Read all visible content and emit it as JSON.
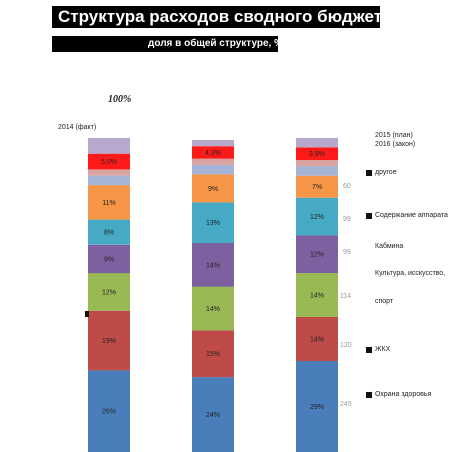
{
  "header": {
    "title": "Структура расходов сводного бюджета",
    "subtitle": "доля в общей структуре, %",
    "percent_label": "100%"
  },
  "side_labels": {
    "left": "2014 (факт)",
    "right_1": "2015 (план)",
    "right_2": "2016 (закон)"
  },
  "legend": {
    "items": [
      "другое",
      "Содержание аппарата",
      "Кабмина",
      "Культура, исскусство,",
      "спорт",
      "ЖКХ",
      "Охрана здоровья"
    ]
  },
  "side_numbers": [
    "60",
    "99",
    "99",
    "114",
    "120",
    "245"
  ],
  "chart_data": {
    "type": "bar",
    "stacked": true,
    "categories": [
      "2014 (факт)",
      "2015 (план)",
      "2016 (закон)"
    ],
    "series": [
      {
        "label": "26%",
        "values": [
          26,
          24,
          29
        ],
        "labels": [
          "26%",
          "24%",
          "29%"
        ],
        "color": "#4a7ebb"
      },
      {
        "values": [
          19,
          15,
          14
        ],
        "labels": [
          "19%",
          "15%",
          "14%"
        ],
        "color": "#be4b48"
      },
      {
        "values": [
          12,
          14,
          14
        ],
        "labels": [
          "12%",
          "14%",
          "14%"
        ],
        "color": "#98b954"
      },
      {
        "values": [
          9,
          14,
          12
        ],
        "labels": [
          "9%",
          "14%",
          "12%"
        ],
        "color": "#7d60a0"
      },
      {
        "values": [
          8,
          13,
          12
        ],
        "labels": [
          "8%",
          "13%",
          "12%"
        ],
        "color": "#46aac5"
      },
      {
        "values": [
          11,
          9,
          7
        ],
        "labels": [
          "11%",
          "9%",
          "7%"
        ],
        "color": "#f79646"
      },
      {
        "values": [
          3,
          3,
          3
        ],
        "labels": [
          "",
          "",
          ""
        ],
        "color": "#a4b5d8"
      },
      {
        "values": [
          2,
          2,
          2
        ],
        "labels": [
          "",
          "",
          ""
        ],
        "color": "#d9a3a2"
      },
      {
        "values": [
          5,
          4,
          4
        ],
        "labels": [
          "5,0%",
          "4,3%",
          "3,9%"
        ],
        "color": "#ff1a1a"
      },
      {
        "values": [
          5,
          2,
          3
        ],
        "labels": [
          "",
          "",
          ""
        ],
        "color": "#b7a9cd"
      }
    ],
    "ylim": [
      0,
      100
    ]
  }
}
